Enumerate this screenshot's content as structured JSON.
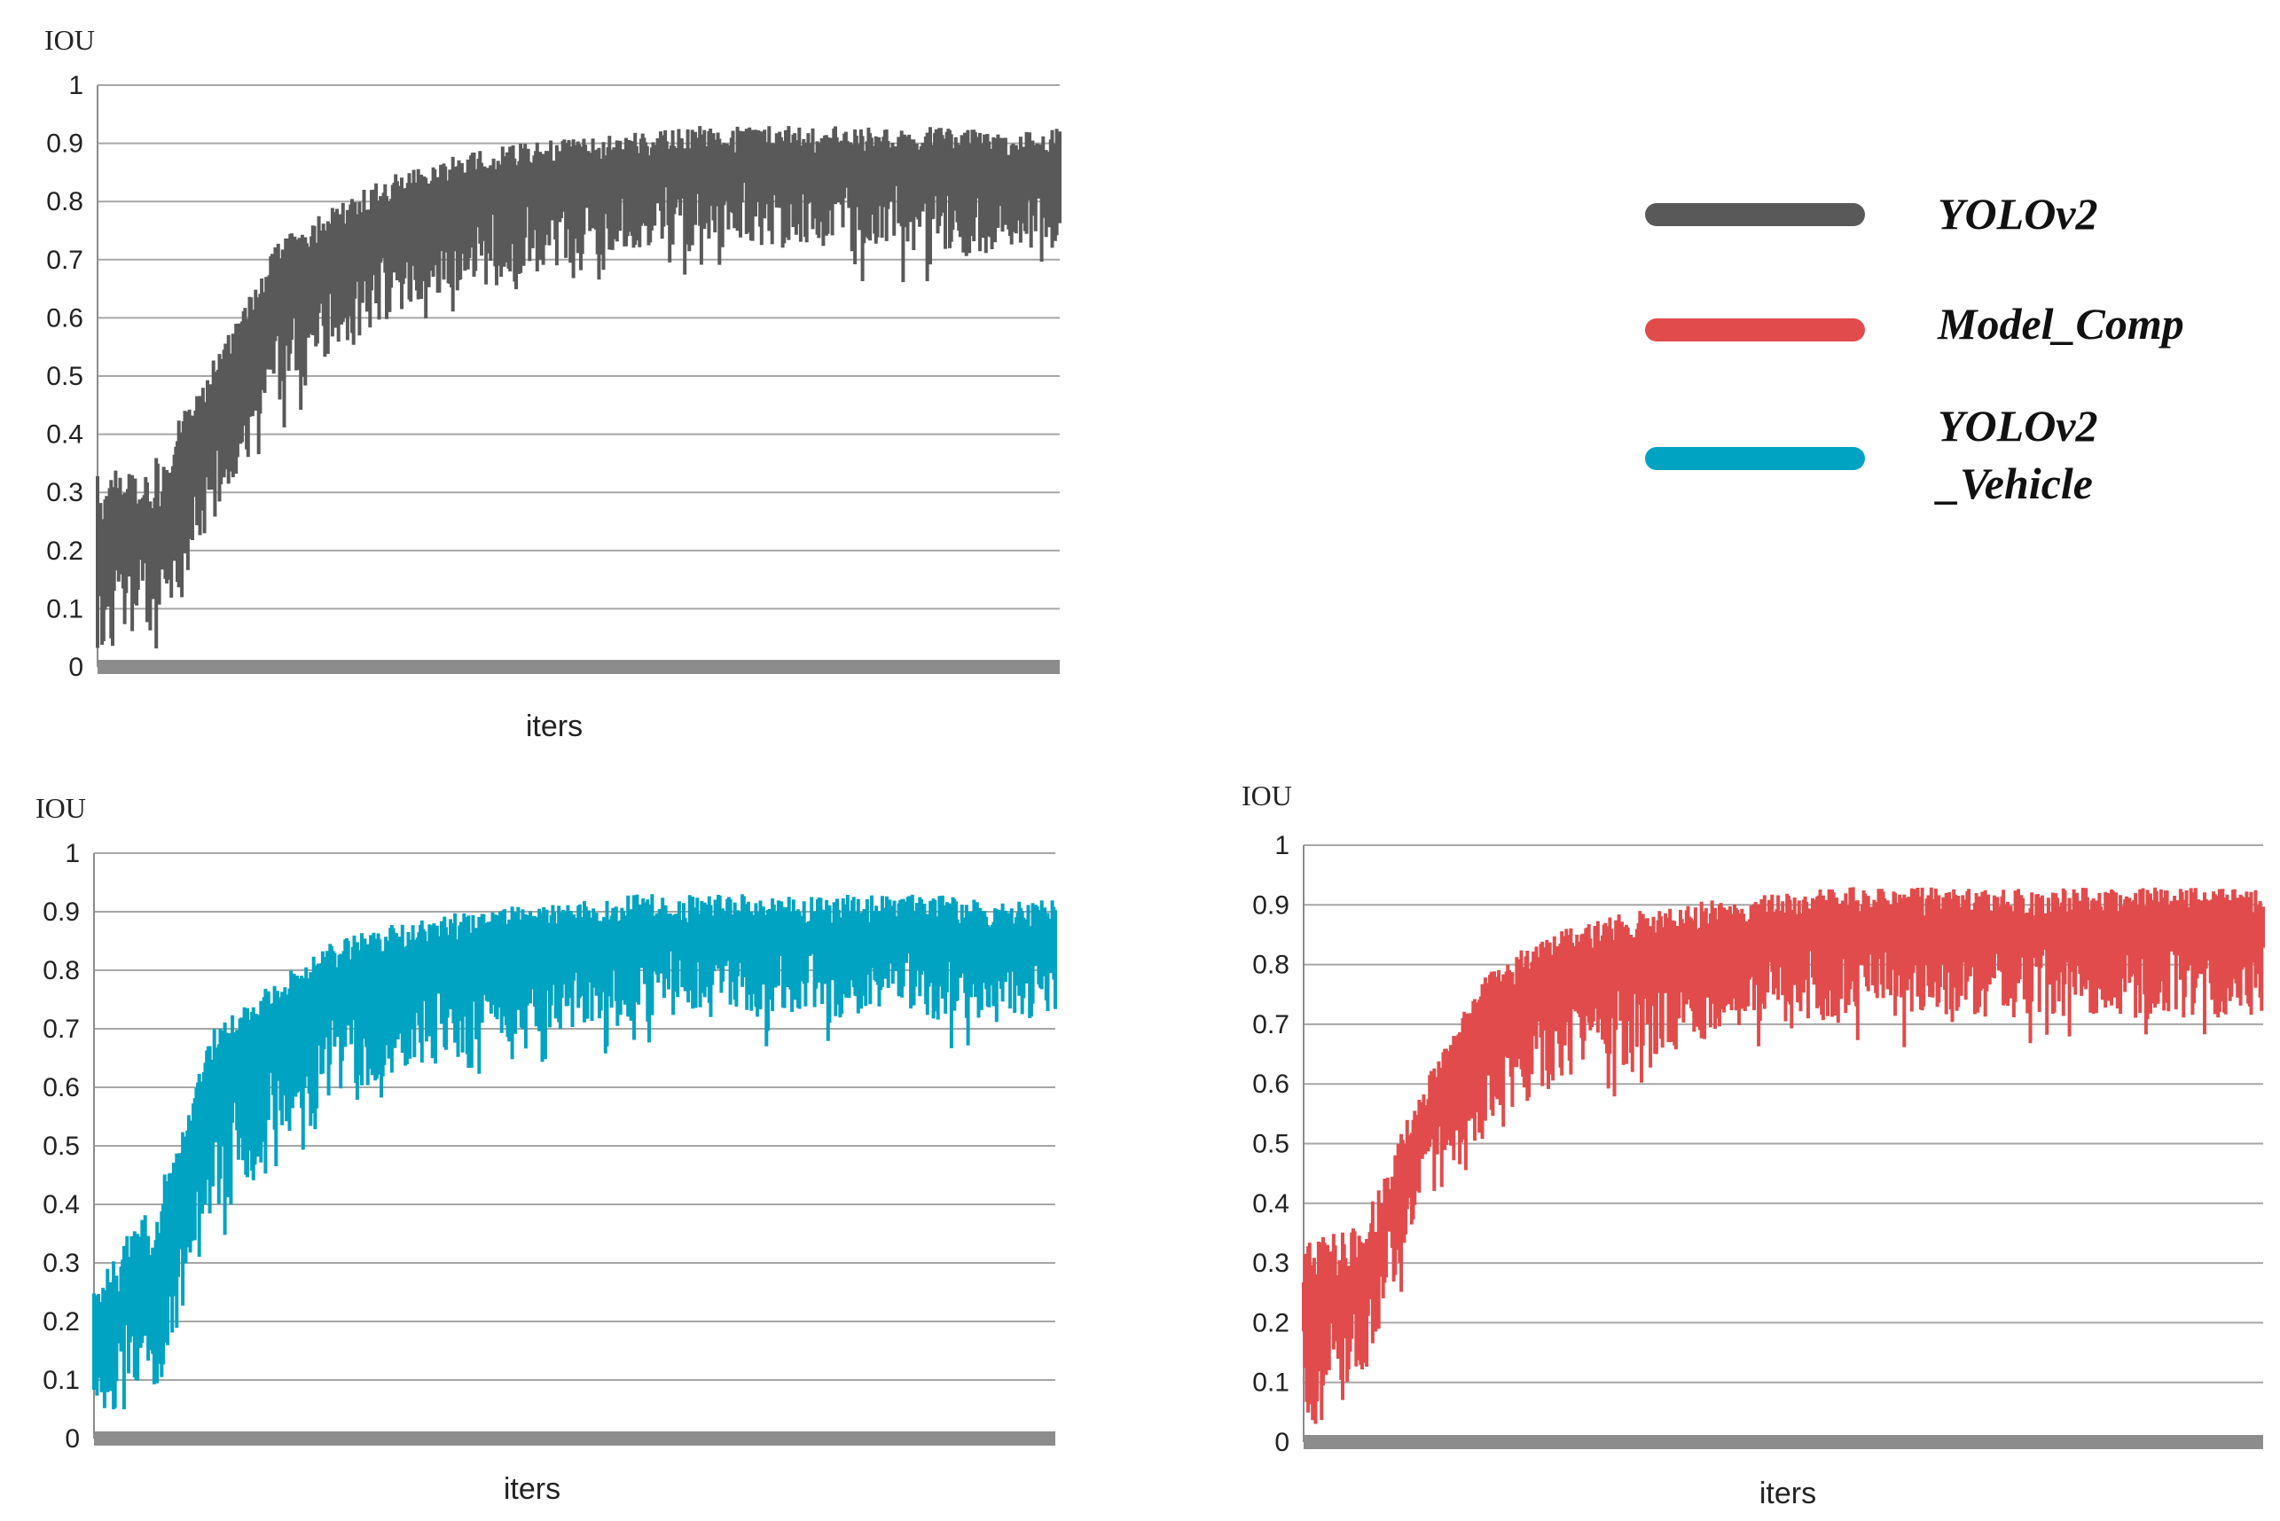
{
  "colors": {
    "YOLOv2": "#595959",
    "Model_Comp": "#e24b4b",
    "YOLOv2_Vehicle": "#00a3c2",
    "grid": "#a6a6a6",
    "axis": "#8c8c8c"
  },
  "legend": {
    "placement": "top-right",
    "items": [
      {
        "label_lines": [
          "YOLOv2"
        ],
        "color": "#595959"
      },
      {
        "label_lines": [
          "Model_Comp"
        ],
        "color": "#e24b4b"
      },
      {
        "label_lines": [
          "YOLOv2",
          "_Vehicle"
        ],
        "color": "#00a3c2"
      }
    ]
  },
  "chart_data": [
    {
      "type": "line",
      "ylabel": "IOU",
      "xlabel": "iters",
      "ylim": [
        0,
        1
      ],
      "y_ticks": [
        "0",
        "0.1",
        "0.2",
        "0.3",
        "0.4",
        "0.5",
        "0.6",
        "0.7",
        "0.8",
        "0.9",
        "1"
      ],
      "grid": true,
      "series": [
        {
          "color": "#595959",
          "upper_envelope": [
            0.33,
            0.36,
            0.54,
            0.73,
            0.8,
            0.85,
            0.88,
            0.9,
            0.91,
            0.92,
            0.93,
            0.93,
            0.93,
            0.93,
            0.93,
            0.92,
            0.93
          ],
          "lower_envelope": [
            0.03,
            0.05,
            0.25,
            0.45,
            0.55,
            0.6,
            0.64,
            0.66,
            0.7,
            0.72,
            0.72,
            0.72,
            0.72,
            0.71,
            0.71,
            0.71,
            0.71
          ]
        }
      ]
    },
    {
      "type": "line",
      "ylabel": "IOU",
      "xlabel": "iters",
      "ylim": [
        0,
        1
      ],
      "y_ticks": [
        "0",
        "0.1",
        "0.2",
        "0.3",
        "0.4",
        "0.5",
        "0.6",
        "0.7",
        "0.8",
        "0.9",
        "1"
      ],
      "grid": true,
      "series": [
        {
          "color": "#00a3c2",
          "upper_envelope": [
            0.28,
            0.4,
            0.7,
            0.78,
            0.85,
            0.88,
            0.9,
            0.91,
            0.92,
            0.93,
            0.93,
            0.93,
            0.93,
            0.93,
            0.93,
            0.92,
            0.92
          ],
          "lower_envelope": [
            0.01,
            0.08,
            0.35,
            0.5,
            0.58,
            0.62,
            0.65,
            0.68,
            0.7,
            0.71,
            0.72,
            0.72,
            0.72,
            0.71,
            0.71,
            0.71,
            0.72
          ]
        }
      ]
    },
    {
      "type": "line",
      "ylabel": "IOU",
      "xlabel": "iters",
      "ylim": [
        0,
        1
      ],
      "y_ticks": [
        "0",
        "0.1",
        "0.2",
        "0.3",
        "0.4",
        "0.5",
        "0.6",
        "0.7",
        "0.8",
        "0.9",
        "1"
      ],
      "grid": true,
      "series": [
        {
          "color": "#e24b4b",
          "upper_envelope": [
            0.33,
            0.38,
            0.6,
            0.78,
            0.85,
            0.88,
            0.9,
            0.91,
            0.92,
            0.93,
            0.93,
            0.93,
            0.93,
            0.93,
            0.93,
            0.93,
            0.93
          ],
          "lower_envelope": [
            0.02,
            0.12,
            0.4,
            0.5,
            0.58,
            0.62,
            0.65,
            0.68,
            0.7,
            0.71,
            0.71,
            0.71,
            0.71,
            0.71,
            0.71,
            0.71,
            0.71
          ]
        }
      ]
    }
  ]
}
